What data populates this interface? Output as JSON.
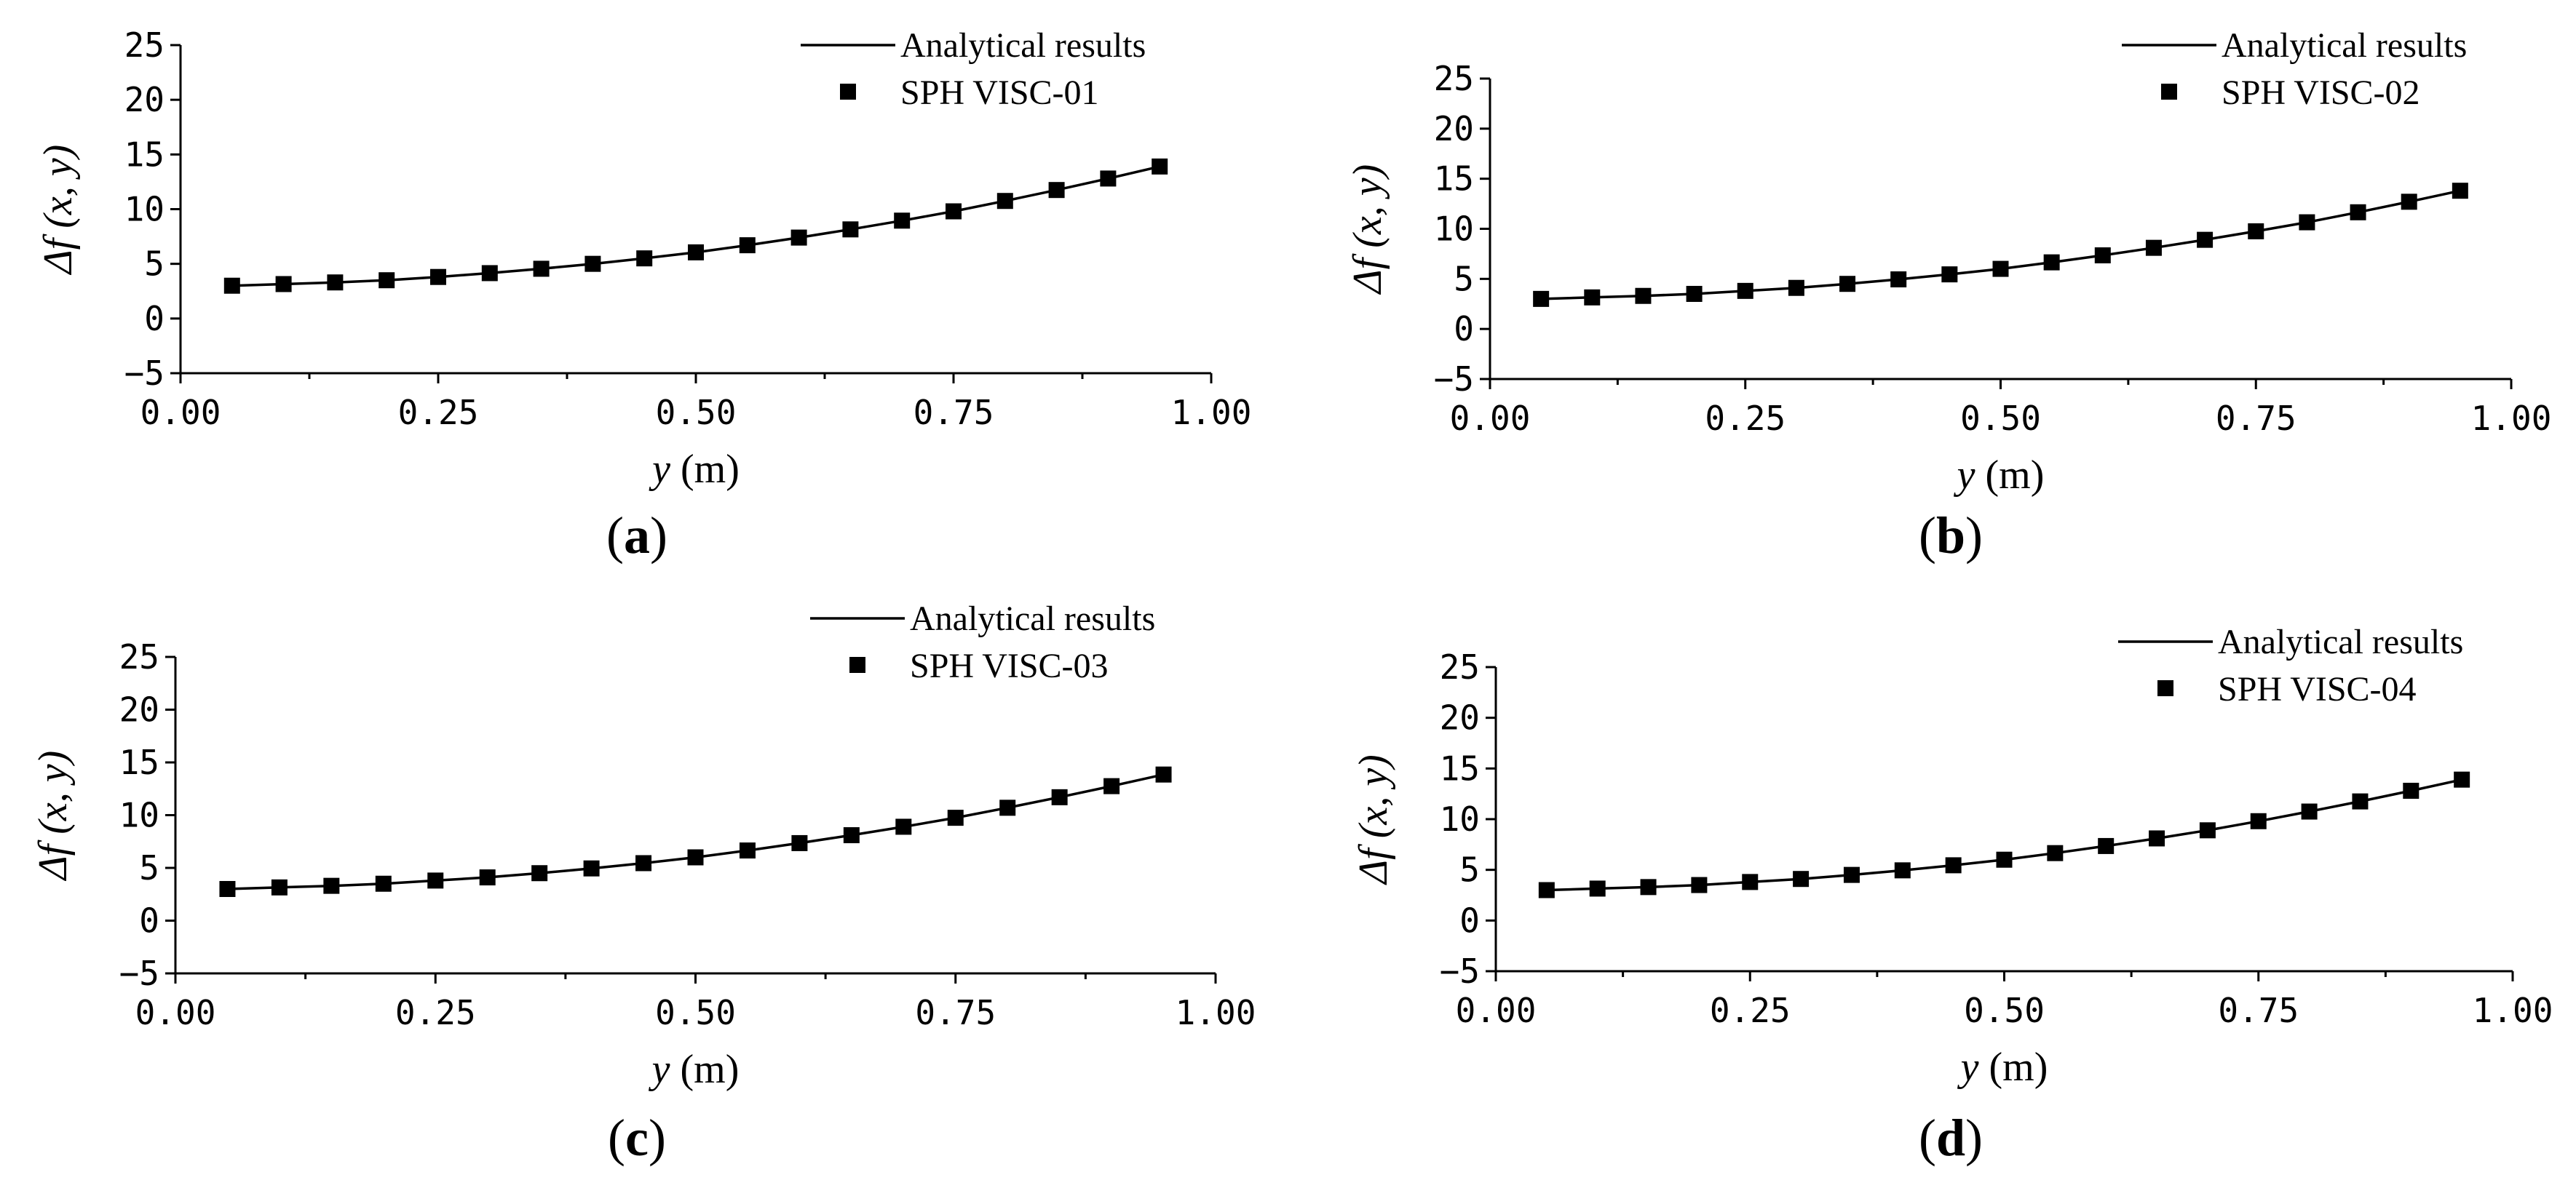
{
  "figure": {
    "xlabel_var": "y",
    "xlabel_unit": " (m)",
    "ylabel": "Δf (x, y)",
    "legend_line_label": "Analytical results"
  },
  "chart_data": [
    {
      "panel": "(a)",
      "type": "line",
      "x_tick_labels": [
        "0.00",
        "0.25",
        "0.50",
        "0.75",
        "1.00"
      ],
      "y_tick_labels": [
        "−5",
        "0",
        "5",
        "10",
        "15",
        "20",
        "25"
      ],
      "xlim": [
        0,
        1
      ],
      "ylim": [
        -5,
        25
      ],
      "xlabel": "y (m)",
      "ylabel": "Δf (x, y)",
      "legend": "top-right",
      "series": [
        {
          "name": "Analytical results",
          "style": "line",
          "x": [
            0.05,
            0.1,
            0.15,
            0.2,
            0.25,
            0.3,
            0.35,
            0.4,
            0.45,
            0.5,
            0.55,
            0.6,
            0.65,
            0.7,
            0.75,
            0.8,
            0.85,
            0.9,
            0.95
          ],
          "y": [
            3.0,
            3.15,
            3.3,
            3.5,
            3.8,
            4.15,
            4.55,
            5.0,
            5.5,
            6.05,
            6.7,
            7.4,
            8.15,
            8.95,
            9.8,
            10.75,
            11.75,
            12.8,
            13.9
          ]
        },
        {
          "name": "SPH VISC-01",
          "style": "square",
          "x": [
            0.05,
            0.1,
            0.15,
            0.2,
            0.25,
            0.3,
            0.35,
            0.4,
            0.45,
            0.5,
            0.55,
            0.6,
            0.65,
            0.7,
            0.75,
            0.8,
            0.85,
            0.9,
            0.95
          ],
          "y": [
            3.0,
            3.15,
            3.3,
            3.5,
            3.8,
            4.15,
            4.55,
            5.0,
            5.5,
            6.05,
            6.7,
            7.4,
            8.15,
            8.95,
            9.8,
            10.75,
            11.75,
            12.8,
            13.9
          ]
        }
      ]
    },
    {
      "panel": "(b)",
      "type": "line",
      "x_tick_labels": [
        "0.00",
        "0.25",
        "0.50",
        "0.75",
        "1.00"
      ],
      "y_tick_labels": [
        "−5",
        "0",
        "5",
        "10",
        "15",
        "20",
        "25"
      ],
      "xlim": [
        0,
        1
      ],
      "ylim": [
        -5,
        25
      ],
      "xlabel": "y (m)",
      "ylabel": "Δf (x, y)",
      "legend": "top-right",
      "series": [
        {
          "name": "Analytical results",
          "style": "line",
          "x": [
            0.05,
            0.1,
            0.15,
            0.2,
            0.25,
            0.3,
            0.35,
            0.4,
            0.45,
            0.5,
            0.55,
            0.6,
            0.65,
            0.7,
            0.75,
            0.8,
            0.85,
            0.9,
            0.95
          ],
          "y": [
            3.0,
            3.15,
            3.3,
            3.5,
            3.8,
            4.1,
            4.5,
            4.95,
            5.45,
            6.0,
            6.65,
            7.35,
            8.1,
            8.9,
            9.75,
            10.65,
            11.65,
            12.7,
            13.8
          ]
        },
        {
          "name": "SPH VISC-02",
          "style": "square",
          "x": [
            0.05,
            0.1,
            0.15,
            0.2,
            0.25,
            0.3,
            0.35,
            0.4,
            0.45,
            0.5,
            0.55,
            0.6,
            0.65,
            0.7,
            0.75,
            0.8,
            0.85,
            0.9,
            0.95
          ],
          "y": [
            3.0,
            3.15,
            3.3,
            3.5,
            3.8,
            4.1,
            4.5,
            4.95,
            5.45,
            6.0,
            6.65,
            7.35,
            8.1,
            8.9,
            9.75,
            10.65,
            11.65,
            12.7,
            13.8
          ]
        }
      ]
    },
    {
      "panel": "(c)",
      "type": "line",
      "x_tick_labels": [
        "0.00",
        "0.25",
        "0.50",
        "0.75",
        "1.00"
      ],
      "y_tick_labels": [
        "−5",
        "0",
        "5",
        "10",
        "15",
        "20",
        "25"
      ],
      "xlim": [
        0,
        1
      ],
      "ylim": [
        -5,
        25
      ],
      "xlabel": "y (m)",
      "ylabel": "Δf (x, y)",
      "legend": "top-right",
      "series": [
        {
          "name": "Analytical results",
          "style": "line",
          "x": [
            0.05,
            0.1,
            0.15,
            0.2,
            0.25,
            0.3,
            0.35,
            0.4,
            0.45,
            0.5,
            0.55,
            0.6,
            0.65,
            0.7,
            0.75,
            0.8,
            0.85,
            0.9,
            0.95
          ],
          "y": [
            3.0,
            3.15,
            3.3,
            3.5,
            3.8,
            4.1,
            4.5,
            4.95,
            5.45,
            6.0,
            6.65,
            7.35,
            8.1,
            8.9,
            9.75,
            10.7,
            11.7,
            12.75,
            13.85
          ]
        },
        {
          "name": "SPH VISC-03",
          "style": "square",
          "x": [
            0.05,
            0.1,
            0.15,
            0.2,
            0.25,
            0.3,
            0.35,
            0.4,
            0.45,
            0.5,
            0.55,
            0.6,
            0.65,
            0.7,
            0.75,
            0.8,
            0.85,
            0.9,
            0.95
          ],
          "y": [
            3.0,
            3.15,
            3.3,
            3.5,
            3.8,
            4.1,
            4.5,
            4.95,
            5.45,
            6.0,
            6.65,
            7.35,
            8.1,
            8.9,
            9.75,
            10.7,
            11.7,
            12.75,
            13.85
          ]
        }
      ]
    },
    {
      "panel": "(d)",
      "type": "line",
      "x_tick_labels": [
        "0.00",
        "0.25",
        "0.50",
        "0.75",
        "1.00"
      ],
      "y_tick_labels": [
        "−5",
        "0",
        "5",
        "10",
        "15",
        "20",
        "25"
      ],
      "xlim": [
        0,
        1
      ],
      "ylim": [
        -5,
        25
      ],
      "xlabel": "y (m)",
      "ylabel": "Δf (x, y)",
      "legend": "top-right",
      "series": [
        {
          "name": "Analytical results",
          "style": "line",
          "x": [
            0.05,
            0.1,
            0.15,
            0.2,
            0.25,
            0.3,
            0.35,
            0.4,
            0.45,
            0.5,
            0.55,
            0.6,
            0.65,
            0.7,
            0.75,
            0.8,
            0.85,
            0.9,
            0.95
          ],
          "y": [
            3.0,
            3.15,
            3.3,
            3.5,
            3.8,
            4.1,
            4.5,
            4.95,
            5.45,
            6.0,
            6.65,
            7.35,
            8.1,
            8.9,
            9.8,
            10.75,
            11.75,
            12.8,
            13.9
          ]
        },
        {
          "name": "SPH VISC-04",
          "style": "square",
          "x": [
            0.05,
            0.1,
            0.15,
            0.2,
            0.25,
            0.3,
            0.35,
            0.4,
            0.45,
            0.5,
            0.55,
            0.6,
            0.65,
            0.7,
            0.75,
            0.8,
            0.85,
            0.9,
            0.95
          ],
          "y": [
            3.0,
            3.15,
            3.3,
            3.5,
            3.8,
            4.1,
            4.5,
            4.95,
            5.45,
            6.0,
            6.65,
            7.35,
            8.1,
            8.9,
            9.8,
            10.75,
            11.75,
            12.8,
            13.9
          ]
        }
      ]
    }
  ]
}
